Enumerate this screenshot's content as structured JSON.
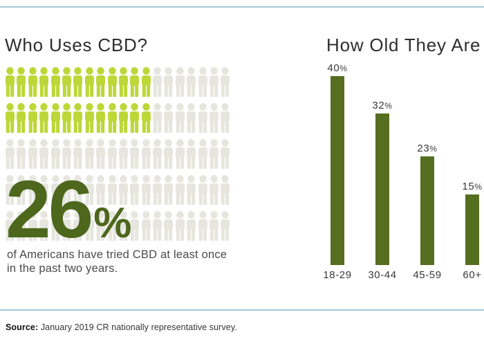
{
  "page": {
    "background": "#ffffff",
    "rule_color": "#a3cbd6"
  },
  "left_panel": {
    "title": "Who Uses CBD?",
    "pictogram": {
      "icon": "person-icon",
      "rows": 5,
      "cols": 20,
      "total_icons": 100,
      "filled_total": 26,
      "filled_per_row": [
        13,
        13,
        0,
        0,
        0
      ],
      "filled_color": "#bdd739",
      "empty_color": "#e6e6df"
    },
    "stat_value": "26",
    "stat_percent_sign": "%",
    "stat_color": "#4d671d",
    "description_line1": "of Americans have tried CBD at least once",
    "description_line2": "in the past two years."
  },
  "right_panel": {
    "title": "How Old They Are"
  },
  "chart_data": {
    "type": "bar",
    "title": "How Old They Are",
    "categories": [
      "18-29",
      "30-44",
      "45-59",
      "60+"
    ],
    "values": [
      40,
      32,
      23,
      15
    ],
    "value_labels": [
      "40%",
      "32%",
      "23%",
      "15%"
    ],
    "bar_color": "#566e20",
    "xlabel": "",
    "ylabel": "",
    "ylim": [
      0,
      40
    ],
    "grid": false,
    "legend": "none",
    "value_labels_position": "above-bars"
  },
  "footer": {
    "source_label": "Source:",
    "source_text": "January 2019 CR nationally representative survey."
  }
}
